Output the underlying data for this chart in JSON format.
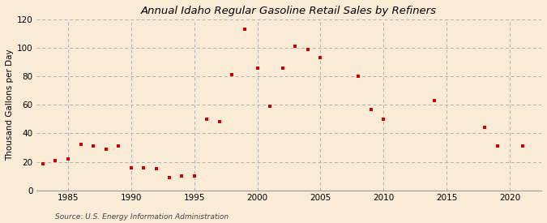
{
  "title": "Annual Idaho Regular Gasoline Retail Sales by Refiners",
  "ylabel": "Thousand Gallons per Day",
  "source": "Source: U.S. Energy Information Administration",
  "background_color": "#faebd7",
  "plot_bg_color": "#faebd7",
  "marker_color": "#cc0000",
  "xlim": [
    1982.5,
    2022.5
  ],
  "ylim": [
    0,
    120
  ],
  "yticks": [
    0,
    20,
    40,
    60,
    80,
    100,
    120
  ],
  "xticks": [
    1985,
    1990,
    1995,
    2000,
    2005,
    2010,
    2015,
    2020
  ],
  "years": [
    1983,
    1984,
    1985,
    1986,
    1987,
    1988,
    1989,
    1990,
    1991,
    1992,
    1993,
    1994,
    1995,
    1996,
    1997,
    1998,
    1999,
    2000,
    2001,
    2002,
    2003,
    2004,
    2005,
    2008,
    2009,
    2010,
    2014,
    2018,
    2019,
    2021
  ],
  "values": [
    18.5,
    21,
    22,
    32,
    31,
    29,
    31,
    16,
    16,
    15,
    9,
    10,
    10,
    50,
    48,
    81,
    113,
    86,
    59,
    86,
    101,
    99,
    93,
    80,
    57,
    50,
    63,
    44,
    31,
    31
  ]
}
